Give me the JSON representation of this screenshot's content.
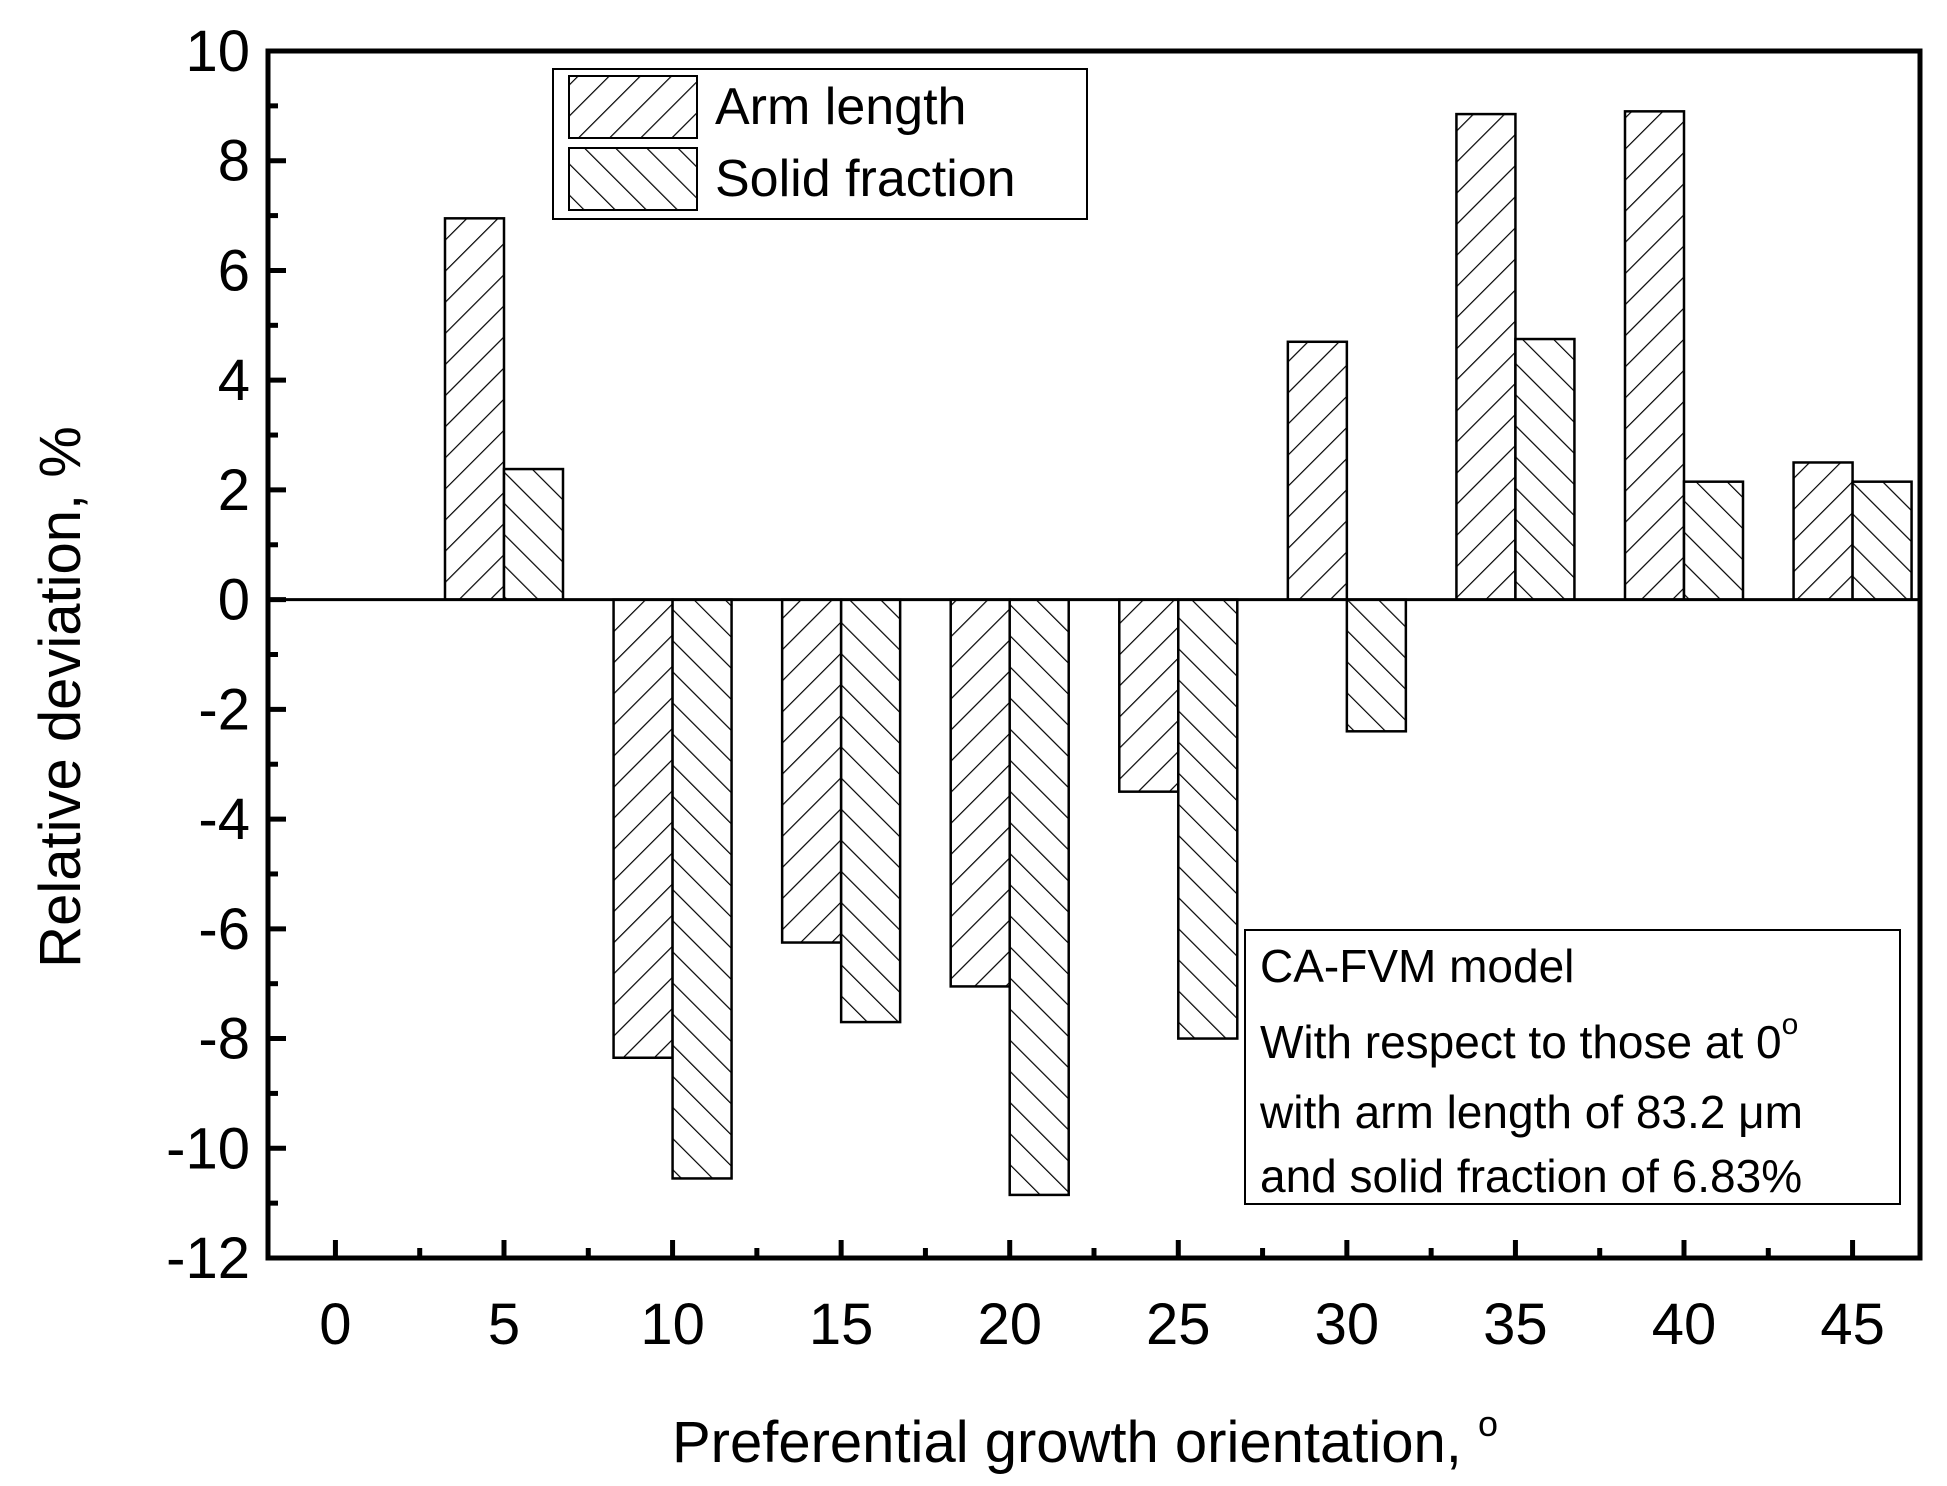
{
  "chart_data": {
    "type": "bar",
    "xlabel": "Preferential growth orientation, ",
    "xlabel_superscript": "o",
    "ylabel": "Relative deviation, %",
    "categories": [
      "5",
      "10",
      "15",
      "20",
      "25",
      "30",
      "35",
      "40",
      "45"
    ],
    "x_ticks": [
      "0",
      "5",
      "10",
      "15",
      "20",
      "25",
      "30",
      "35",
      "40",
      "45"
    ],
    "y_ticks": [
      "10",
      "8",
      "6",
      "4",
      "2",
      "0",
      "-2",
      "-4",
      "-6",
      "-8",
      "-10",
      "-12"
    ],
    "ylim": [
      -12,
      10
    ],
    "xlim": [
      -2,
      47
    ],
    "series": [
      {
        "name": "Arm length",
        "pattern": "forward-hatch",
        "x": [
          5,
          10,
          15,
          20,
          25,
          30,
          35,
          40,
          45
        ],
        "values": [
          6.95,
          -8.35,
          -6.25,
          -7.05,
          -3.5,
          4.7,
          8.85,
          8.9,
          2.5
        ]
      },
      {
        "name": "Solid fraction",
        "pattern": "back-hatch",
        "x": [
          5,
          10,
          15,
          20,
          25,
          30,
          35,
          40,
          45
        ],
        "values": [
          2.38,
          -10.55,
          -7.7,
          -10.85,
          -8.0,
          -2.4,
          4.75,
          2.15,
          2.15
        ]
      }
    ],
    "legend_position": "top-left",
    "grid": false,
    "annotation": {
      "line1": "CA-FVM model",
      "line2": "With respect to those at 0",
      "line2_superscript": "o",
      "line3": "with arm length of 83.2 μm",
      "line4": "and solid fraction of 6.83%"
    }
  }
}
